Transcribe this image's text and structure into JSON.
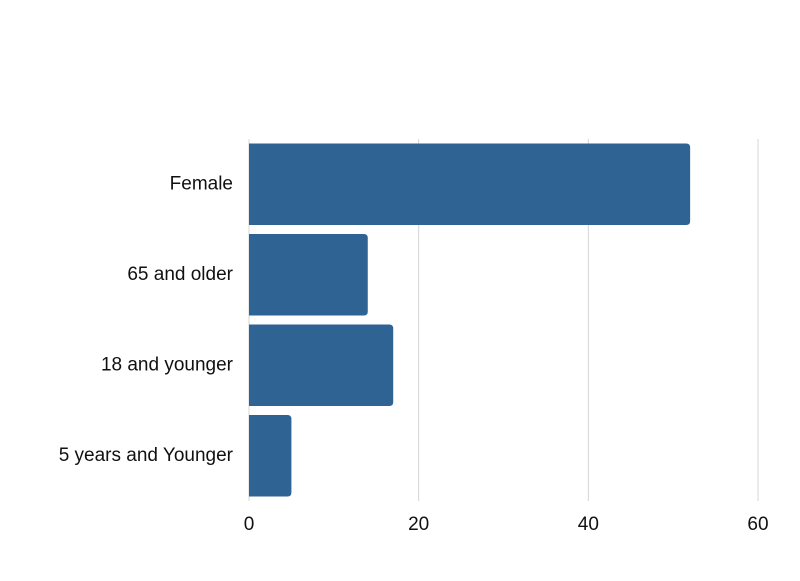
{
  "chart_data": {
    "type": "bar",
    "orientation": "horizontal",
    "categories": [
      "Female",
      "65 and older",
      "18 and younger",
      "5 years and Younger"
    ],
    "values": [
      52,
      14,
      17,
      5
    ],
    "xlim": [
      0,
      60
    ],
    "xticks": [
      0,
      20,
      40,
      60
    ],
    "grid": true,
    "bar_color": "#2e6393"
  }
}
